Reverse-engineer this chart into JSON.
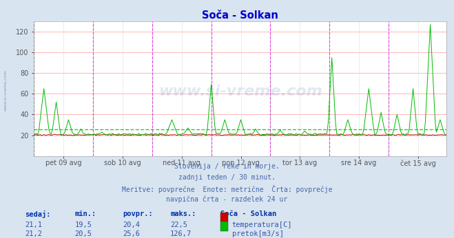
{
  "title": "Soča - Solkan",
  "background_color": "#d8e4f0",
  "plot_bg_color": "#ffffff",
  "grid_color_h": "#ffaaaa",
  "grid_color_v": "#cccccc",
  "vline_color_day": "#cccccc",
  "vline_color_main": "#dd44dd",
  "vline_color_first": "#555555",
  "title_color": "#0000cc",
  "text_color": "#4466aa",
  "ylim": [
    0,
    130
  ],
  "yticks": [
    20,
    40,
    60,
    80,
    100,
    120
  ],
  "n_points": 336,
  "days": [
    "pet 09 avg",
    "sob 10 avg",
    "ned 11 avg",
    "pon 12 avg",
    "tor 13 avg",
    "sre 14 avg",
    "čet 15 avg"
  ],
  "subtitle_lines": [
    "Slovenija / reke in morje.",
    "zadnji teden / 30 minut.",
    "Meritve: povprečne  Enote: metrične  Črta: povprečje",
    "navpična črta - razdelek 24 ur"
  ],
  "legend_header": "Soča - Solkan",
  "legend_items": [
    {
      "label": "temperatura[C]",
      "color": "#cc0000"
    },
    {
      "label": "pretok[m3/s]",
      "color": "#00bb00"
    }
  ],
  "stats_headers": [
    "sedaj:",
    "min.:",
    "povpr.:",
    "maks.:"
  ],
  "stats_rows": [
    [
      "21,1",
      "19,5",
      "20,4",
      "22,5"
    ],
    [
      "21,2",
      "20,5",
      "25,6",
      "126,7"
    ]
  ],
  "avg_temp": 20.4,
  "avg_flow": 25.6,
  "temp_color": "#cc0000",
  "flow_color": "#00bb00",
  "watermark_text": "www.si-vreme.com",
  "side_watermark": "www.si-vreme.com"
}
